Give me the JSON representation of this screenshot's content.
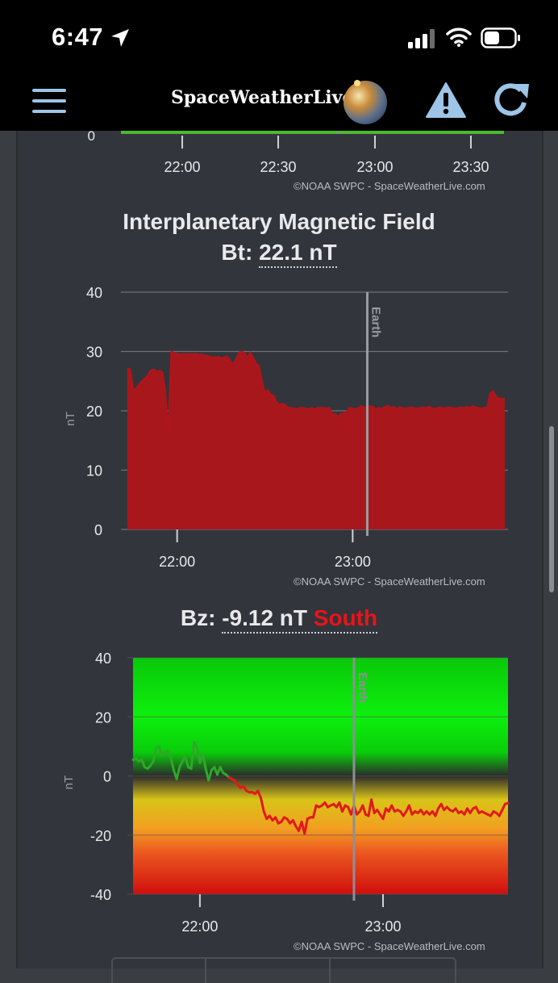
{
  "status_bar": {
    "time": "6:47",
    "icons": [
      "location-arrow-icon",
      "signal-icon",
      "wifi-icon",
      "battery-icon"
    ]
  },
  "header": {
    "brand": "SpaceWeatherLive",
    "icons": [
      "menu-icon",
      "globe-logo",
      "alert-icon",
      "refresh-icon"
    ]
  },
  "credit": "©NOAA SWPC - SpaceWeatherLive.com",
  "top_chart": {
    "y_tick": "0",
    "x_ticks": [
      "22:00",
      "22:30",
      "23:00",
      "23:30"
    ],
    "bar_color": "#4fb82e"
  },
  "imf": {
    "title": "Interplanetary Magnetic Field",
    "bt_label": "Bt:",
    "bt_value": "22.1 nT"
  },
  "bz": {
    "label": "Bz:",
    "value": "-9.12 nT",
    "direction": "South",
    "direction_color": "#e8141a"
  },
  "chart_data": [
    {
      "type": "area",
      "ylabel": "nT",
      "ylim": [
        0,
        40
      ],
      "y_ticks": [
        0,
        10,
        20,
        30,
        40
      ],
      "x_ticks": [
        "22:00",
        "23:00"
      ],
      "marker_label": "Earth",
      "fill_color": "#a8171c",
      "x_minutes": [
        0,
        1,
        2,
        3,
        4,
        5,
        6,
        7,
        8,
        9,
        10,
        11,
        12,
        13,
        14,
        15,
        16,
        17,
        18,
        19,
        20,
        21,
        22,
        23,
        24,
        25,
        26,
        27,
        28,
        29,
        30,
        31,
        32,
        33,
        34,
        35,
        36,
        37,
        38,
        39,
        40,
        41,
        42,
        43,
        44,
        45,
        46,
        47,
        48,
        49,
        50,
        51,
        52,
        53,
        54,
        55,
        56,
        57,
        58,
        59,
        60,
        61,
        62,
        63,
        64,
        65,
        66,
        67,
        68,
        69,
        70,
        71,
        72,
        73,
        74,
        75,
        76,
        77,
        78,
        79,
        80,
        81,
        82,
        83,
        84,
        85,
        86,
        87,
        88,
        89,
        90,
        91,
        92,
        93,
        94,
        95,
        96,
        97,
        98,
        99,
        100,
        101,
        102,
        103,
        104,
        105,
        106,
        107,
        108,
        109,
        110,
        111,
        112,
        113,
        114,
        115,
        116,
        117,
        118,
        119,
        120,
        121,
        122,
        123,
        124,
        125,
        126,
        127,
        128,
        129
      ],
      "values": [
        27.2,
        27.0,
        23.5,
        23.8,
        24.5,
        25.0,
        25.5,
        26.0,
        26.8,
        27.0,
        26.6,
        26.8,
        26.5,
        23.0,
        16.5,
        30.0,
        29.8,
        29.6,
        29.5,
        29.6,
        29.5,
        29.6,
        29.5,
        29.6,
        29.5,
        29.5,
        29.4,
        29.3,
        29.2,
        29.0,
        29.0,
        29.1,
        28.9,
        29.0,
        29.2,
        28.6,
        27.8,
        28.5,
        29.8,
        30.0,
        29.8,
        29.0,
        29.8,
        29.0,
        28.0,
        27.5,
        25.0,
        23.0,
        23.5,
        22.8,
        22.5,
        21.5,
        21.0,
        21.2,
        21.0,
        20.5,
        20.5,
        20.4,
        20.3,
        20.5,
        20.5,
        20.4,
        20.3,
        20.5,
        20.2,
        20.5,
        20.5,
        20.5,
        20.4,
        20.5,
        19.5,
        19.5,
        19.0,
        19.5,
        19.6,
        20.0,
        20.5,
        20.4,
        20.3,
        20.5,
        20.8,
        20.6,
        20.5,
        20.8,
        20.7,
        20.3,
        20.5,
        20.4,
        20.6,
        20.9,
        20.5,
        20.7,
        20.3,
        20.6,
        20.5,
        20.4,
        20.5,
        20.6,
        20.5,
        20.4,
        20.5,
        20.6,
        20.5,
        20.7,
        20.5,
        20.3,
        20.5,
        20.6,
        20.4,
        20.5,
        20.6,
        20.5,
        20.4,
        20.5,
        20.6,
        20.5,
        20.7,
        20.5,
        20.8,
        20.6,
        20.5,
        20.4,
        20.5,
        20.6,
        23.0,
        23.3,
        22.5,
        22.1,
        22.0,
        22.1
      ]
    },
    {
      "type": "line",
      "ylabel": "nT",
      "ylim": [
        -40,
        40
      ],
      "y_ticks": [
        -40,
        -20,
        0,
        20,
        40
      ],
      "x_ticks": [
        "22:00",
        "23:00"
      ],
      "marker_label": "Earth",
      "north_color": "#2fa82a",
      "south_color": "#e01a1a",
      "x_minutes": [
        0,
        1,
        2,
        3,
        4,
        5,
        6,
        7,
        8,
        9,
        10,
        11,
        12,
        13,
        14,
        15,
        16,
        17,
        18,
        19,
        20,
        21,
        22,
        23,
        24,
        25,
        26,
        27,
        28,
        29,
        30,
        31,
        32,
        33,
        34,
        35,
        36,
        37,
        38,
        39,
        40,
        41,
        42,
        43,
        44,
        45,
        46,
        47,
        48,
        49,
        50,
        51,
        52,
        53,
        54,
        55,
        56,
        57,
        58,
        59,
        60,
        61,
        62,
        63,
        64,
        65,
        66,
        67,
        68,
        69,
        70,
        71,
        72,
        73,
        74,
        75,
        76,
        77,
        78,
        79,
        80,
        81,
        82,
        83,
        84,
        85,
        86,
        87,
        88,
        89,
        90,
        91,
        92,
        93,
        94,
        95,
        96,
        97,
        98,
        99,
        100,
        101,
        102,
        103,
        104,
        105,
        106,
        107,
        108,
        109,
        110,
        111,
        112,
        113,
        114,
        115,
        116,
        117,
        118,
        119,
        120,
        121,
        122,
        123,
        124,
        125,
        126,
        127,
        128,
        129
      ],
      "values": [
        5.5,
        6.0,
        5.0,
        5.5,
        3.0,
        2.5,
        3.5,
        5.0,
        9.5,
        10.0,
        7.0,
        8.0,
        8.5,
        6.0,
        2.0,
        -1.0,
        3.0,
        5.0,
        6.5,
        3.0,
        2.5,
        11.5,
        10.0,
        4.5,
        7.5,
        2.5,
        -1.5,
        2.0,
        3.0,
        0.5,
        3.0,
        1.0,
        0.5,
        -0.5,
        -1.0,
        -1.5,
        -3.0,
        -4.0,
        -3.5,
        -5.0,
        -5.5,
        -5.5,
        -6.0,
        -5.0,
        -7.5,
        -12.0,
        -14.5,
        -13.5,
        -15.0,
        -14.0,
        -16.0,
        -15.5,
        -14.0,
        -14.5,
        -16.0,
        -15.0,
        -17.0,
        -18.5,
        -15.5,
        -19.5,
        -14.5,
        -14.0,
        -14.0,
        -10.0,
        -10.5,
        -10.0,
        -9.0,
        -10.5,
        -10.0,
        -9.5,
        -10.5,
        -9.0,
        -12.0,
        -10.0,
        -10.5,
        -13.0,
        -10.0,
        -13.0,
        -12.0,
        -10.0,
        -13.0,
        -13.5,
        -8.0,
        -12.5,
        -11.5,
        -13.0,
        -14.5,
        -11.0,
        -12.0,
        -10.0,
        -12.0,
        -11.5,
        -12.0,
        -13.5,
        -12.0,
        -10.0,
        -13.0,
        -12.0,
        -12.5,
        -11.5,
        -13.0,
        -12.0,
        -13.0,
        -12.0,
        -13.5,
        -11.0,
        -9.5,
        -11.5,
        -10.5,
        -11.5,
        -12.0,
        -11.0,
        -12.5,
        -12.0,
        -13.0,
        -11.0,
        -12.5,
        -11.0,
        -10.5,
        -12.5,
        -12.0,
        -12.5,
        -13.0,
        -13.5,
        -12.0,
        -12.5,
        -13.5,
        -11.5,
        -9.5,
        -9.12
      ]
    }
  ]
}
